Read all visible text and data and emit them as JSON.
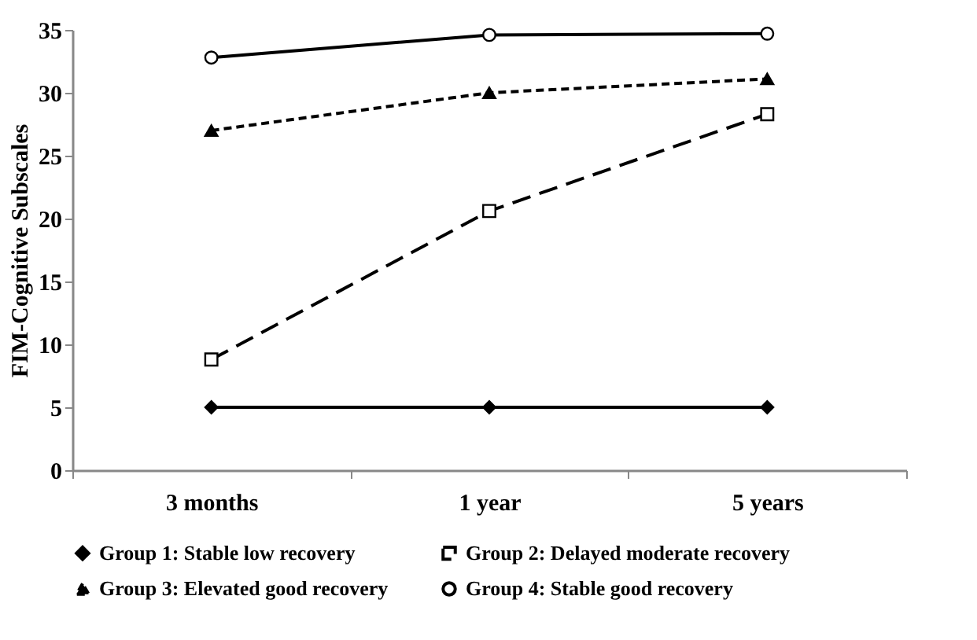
{
  "chart_data": {
    "type": "line",
    "ylabel": "FIM-Cognitive Subscales",
    "categories": [
      "3 months",
      "1 year",
      "5 years"
    ],
    "series": [
      {
        "name": "Group 1: Stable low recovery",
        "color": "#000000",
        "marker": "diamond",
        "line_style": "solid",
        "values": [
          5,
          5,
          5
        ]
      },
      {
        "name": "Group 2: Delayed moderate recovery",
        "color": "#000000",
        "marker": "square",
        "line_style": "dashed",
        "values": [
          8.8,
          20.6,
          28.3
        ]
      },
      {
        "name": "Group 3: Elevated good recovery",
        "color": "#000000",
        "marker": "triangle",
        "line_style": "dotted",
        "values": [
          27,
          30,
          31.1
        ]
      },
      {
        "name": "Group 4: Stable good recovery",
        "color": "#000000",
        "marker": "circle",
        "line_style": "solid",
        "values": [
          32.8,
          34.6,
          34.7
        ]
      }
    ],
    "ylim": [
      0,
      35
    ],
    "yticks": [
      0,
      5,
      10,
      15,
      20,
      25,
      30,
      35
    ],
    "grid": false,
    "legend": "bottom"
  }
}
